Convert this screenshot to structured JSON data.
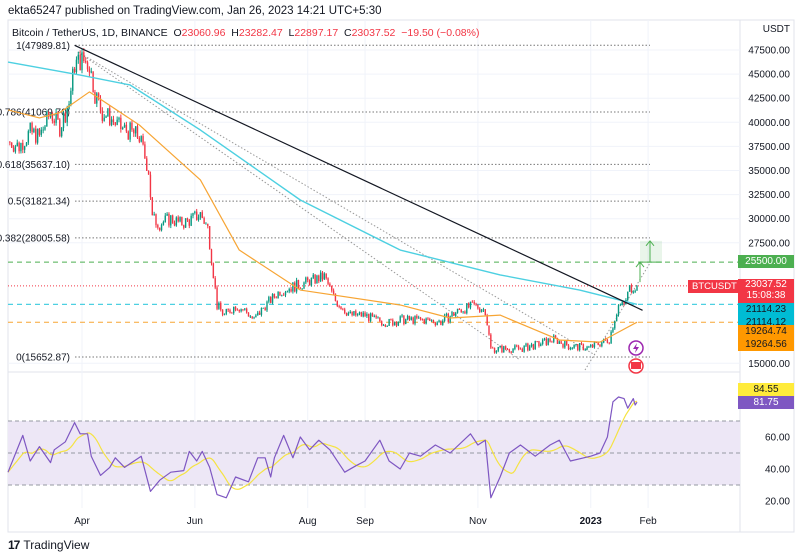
{
  "header": {
    "published": "ekta65247 published on TradingView.com, Jan 26, 2023 14:21 UTC+5:30"
  },
  "legend": {
    "symbol": "Bitcoin / TetherUS, 1D, BINANCE",
    "o_label": "O",
    "o": "23060.96",
    "h_label": "H",
    "h": "23282.47",
    "l_label": "L",
    "l": "22897.17",
    "c_label": "C",
    "c": "23037.52",
    "change": "−19.50 (−0.08%)"
  },
  "price_axis": {
    "currency": "USDT"
  },
  "tags": {
    "target": "25500.00",
    "symbol": "BTCUSDT",
    "last_price": "23037.52",
    "countdown": "15:08:38",
    "ma200_a": "21114.23",
    "ma200_b": "21114.12",
    "ma50_a": "19264.74",
    "ma50_b": "19264.56",
    "rsi_signal": "84.55",
    "rsi": "81.75"
  },
  "footer": {
    "brand": "TradingView"
  },
  "colors": {
    "up": "#089981",
    "down": "#f23645",
    "ma200": "#4dd0e1",
    "ma50": "#f7a534",
    "rsi": "#7e57c2",
    "rsi_signal": "#f5e342",
    "target": "#4caf50",
    "rsi_band": "#ede7f6"
  },
  "chart_data": [
    {
      "type": "candlestick",
      "title": "Bitcoin / TetherUS, 1D, BINANCE",
      "ylim": [
        13500,
        49500
      ],
      "yticks": [
        "47500.00",
        "45000.00",
        "42500.00",
        "40000.00",
        "37500.00",
        "35000.00",
        "32500.00",
        "30000.00",
        "27500.00",
        "15000.00"
      ],
      "xticks": [
        {
          "date": "2022-04-01",
          "label": "Apr"
        },
        {
          "date": "2022-06-01",
          "label": "Jun"
        },
        {
          "date": "2022-08-01",
          "label": "Aug"
        },
        {
          "date": "2022-09-01",
          "label": "Sep"
        },
        {
          "date": "2022-11-01",
          "label": "Nov"
        },
        {
          "date": "2023-01-01",
          "label": "2023"
        },
        {
          "date": "2023-02-01",
          "label": "Feb"
        }
      ],
      "close_series": [
        [
          "2022-02-20",
          38000
        ],
        [
          "2022-02-26",
          37500
        ],
        [
          "2022-03-04",
          39000
        ],
        [
          "2022-03-09",
          38500
        ],
        [
          "2022-03-15",
          41000
        ],
        [
          "2022-03-20",
          39500
        ],
        [
          "2022-03-25",
          42000
        ],
        [
          "2022-03-28",
          46000
        ],
        [
          "2022-04-01",
          46500
        ],
        [
          "2022-04-05",
          46000
        ],
        [
          "2022-04-08",
          43000
        ],
        [
          "2022-04-12",
          41000
        ],
        [
          "2022-04-16",
          40500
        ],
        [
          "2022-04-21",
          39500
        ],
        [
          "2022-04-27",
          39000
        ],
        [
          "2022-05-02",
          38500
        ],
        [
          "2022-05-07",
          35000
        ],
        [
          "2022-05-09",
          30000
        ],
        [
          "2022-05-13",
          29500
        ],
        [
          "2022-05-19",
          30000
        ],
        [
          "2022-05-24",
          29500
        ],
        [
          "2022-05-29",
          29800
        ],
        [
          "2022-06-04",
          30500
        ],
        [
          "2022-06-08",
          29000
        ],
        [
          "2022-06-10",
          26000
        ],
        [
          "2022-06-13",
          21000
        ],
        [
          "2022-06-17",
          20000
        ],
        [
          "2022-06-23",
          21000
        ],
        [
          "2022-06-28",
          20500
        ],
        [
          "2022-07-03",
          19500
        ],
        [
          "2022-07-09",
          21000
        ],
        [
          "2022-07-17",
          22500
        ],
        [
          "2022-07-25",
          23000
        ],
        [
          "2022-08-02",
          23500
        ],
        [
          "2022-08-10",
          24000
        ],
        [
          "2022-08-16",
          21500
        ],
        [
          "2022-08-24",
          20000
        ],
        [
          "2022-09-01",
          20000
        ],
        [
          "2022-09-06",
          19500
        ],
        [
          "2022-09-14",
          19200
        ],
        [
          "2022-09-20",
          19500
        ],
        [
          "2022-10-01",
          19500
        ],
        [
          "2022-10-12",
          19300
        ],
        [
          "2022-10-22",
          20500
        ],
        [
          "2022-10-30",
          21000
        ],
        [
          "2022-11-05",
          20500
        ],
        [
          "2022-11-08",
          16500
        ],
        [
          "2022-11-13",
          16500
        ],
        [
          "2022-11-24",
          16500
        ],
        [
          "2022-12-04",
          17000
        ],
        [
          "2022-12-12",
          17500
        ],
        [
          "2022-12-20",
          16800
        ],
        [
          "2022-12-31",
          16600
        ],
        [
          "2023-01-05",
          17000
        ],
        [
          "2023-01-11",
          17500
        ],
        [
          "2023-01-13",
          19000
        ],
        [
          "2023-01-16",
          21000
        ],
        [
          "2023-01-19",
          21000
        ],
        [
          "2023-01-22",
          22800
        ],
        [
          "2023-01-26",
          23037.52
        ]
      ],
      "ma200": [
        [
          "2022-02-20",
          46250
        ],
        [
          "2022-03-31",
          44900
        ],
        [
          "2022-04-27",
          43870
        ],
        [
          "2022-06-04",
          39200
        ],
        [
          "2022-07-28",
          31940
        ],
        [
          "2022-09-20",
          26750
        ],
        [
          "2022-11-13",
          24170
        ],
        [
          "2022-12-26",
          22600
        ],
        [
          "2023-01-26",
          21114.23
        ]
      ],
      "ma50": [
        [
          "2022-02-20",
          41280
        ],
        [
          "2022-03-09",
          40450
        ],
        [
          "2022-03-20",
          41000
        ],
        [
          "2022-04-05",
          43150
        ],
        [
          "2022-05-02",
          39720
        ],
        [
          "2022-06-04",
          34020
        ],
        [
          "2022-06-25",
          26750
        ],
        [
          "2022-07-28",
          22600
        ],
        [
          "2022-09-20",
          21050
        ],
        [
          "2022-10-17",
          19700
        ],
        [
          "2022-11-13",
          20000
        ],
        [
          "2022-12-15",
          17420
        ],
        [
          "2023-01-06",
          17200
        ],
        [
          "2023-01-26",
          19264.74
        ]
      ],
      "fib_levels": [
        {
          "label": "1(47989.81)",
          "price": 47989.81
        },
        {
          "label": "0.786(41069.70)",
          "price": 41069.7
        },
        {
          "label": "0.618(35637.10)",
          "price": 35637.1
        },
        {
          "label": "0.5(31821.34)",
          "price": 31821.34
        },
        {
          "label": "0.382(28005.58)",
          "price": 28005.58
        },
        {
          "label": "0(15652.87)",
          "price": 15652.87
        }
      ],
      "trendline": [
        [
          "2022-03-28",
          47989.81
        ],
        [
          "2023-01-29",
          20500
        ]
      ],
      "horizontal_lines": {
        "target": 25500,
        "last": 23037.52,
        "ma200": 21114.23,
        "ma50": 19264.74
      },
      "target_arrow": {
        "from": 25500,
        "to": 27700
      }
    },
    {
      "type": "line",
      "title": "RSI",
      "ylim": [
        15,
        92
      ],
      "yticks": [
        "60.00",
        "40.00",
        "20.00"
      ],
      "bands": [
        30,
        50,
        70
      ],
      "rsi": [
        [
          "2022-02-20",
          38
        ],
        [
          "2022-02-28",
          61
        ],
        [
          "2022-03-04",
          45
        ],
        [
          "2022-03-09",
          54
        ],
        [
          "2022-03-15",
          44
        ],
        [
          "2022-03-17",
          52
        ],
        [
          "2022-03-23",
          57
        ],
        [
          "2022-03-28",
          69
        ],
        [
          "2022-03-31",
          62
        ],
        [
          "2022-04-04",
          62
        ],
        [
          "2022-04-06",
          48
        ],
        [
          "2022-04-11",
          36
        ],
        [
          "2022-04-16",
          41
        ],
        [
          "2022-04-19",
          47
        ],
        [
          "2022-04-24",
          41
        ],
        [
          "2022-05-03",
          48
        ],
        [
          "2022-05-08",
          26
        ],
        [
          "2022-05-13",
          33
        ],
        [
          "2022-05-19",
          38
        ],
        [
          "2022-05-26",
          39
        ],
        [
          "2022-05-29",
          51
        ],
        [
          "2022-06-02",
          45
        ],
        [
          "2022-06-05",
          51
        ],
        [
          "2022-06-09",
          41
        ],
        [
          "2022-06-13",
          24
        ],
        [
          "2022-06-18",
          22
        ],
        [
          "2022-06-23",
          35
        ],
        [
          "2022-06-30",
          32
        ],
        [
          "2022-07-05",
          47
        ],
        [
          "2022-07-09",
          47
        ],
        [
          "2022-07-12",
          35
        ],
        [
          "2022-07-14",
          47
        ],
        [
          "2022-07-19",
          61
        ],
        [
          "2022-07-24",
          47
        ],
        [
          "2022-07-28",
          60
        ],
        [
          "2022-08-02",
          52
        ],
        [
          "2022-08-07",
          58
        ],
        [
          "2022-08-13",
          52
        ],
        [
          "2022-08-21",
          38
        ],
        [
          "2022-08-27",
          42
        ],
        [
          "2022-09-01",
          45
        ],
        [
          "2022-09-09",
          58
        ],
        [
          "2022-09-14",
          45
        ],
        [
          "2022-09-20",
          40
        ],
        [
          "2022-09-25",
          50
        ],
        [
          "2022-10-01",
          48
        ],
        [
          "2022-10-09",
          55
        ],
        [
          "2022-10-17",
          50
        ],
        [
          "2022-10-28",
          62
        ],
        [
          "2022-11-01",
          55
        ],
        [
          "2022-11-05",
          58
        ],
        [
          "2022-11-08",
          22
        ],
        [
          "2022-11-13",
          35
        ],
        [
          "2022-11-18",
          50
        ],
        [
          "2022-11-24",
          55
        ],
        [
          "2022-12-02",
          48
        ],
        [
          "2022-12-10",
          55
        ],
        [
          "2022-12-15",
          58
        ],
        [
          "2022-12-21",
          45
        ],
        [
          "2023-01-01",
          48
        ],
        [
          "2023-01-06",
          50
        ],
        [
          "2023-01-10",
          60
        ],
        [
          "2023-01-13",
          82
        ],
        [
          "2023-01-16",
          85
        ],
        [
          "2023-01-19",
          84
        ],
        [
          "2023-01-21",
          78
        ],
        [
          "2023-01-24",
          84
        ],
        [
          "2023-01-25",
          80
        ],
        [
          "2023-01-26",
          81.75
        ]
      ],
      "signal_last": 84.55
    }
  ]
}
